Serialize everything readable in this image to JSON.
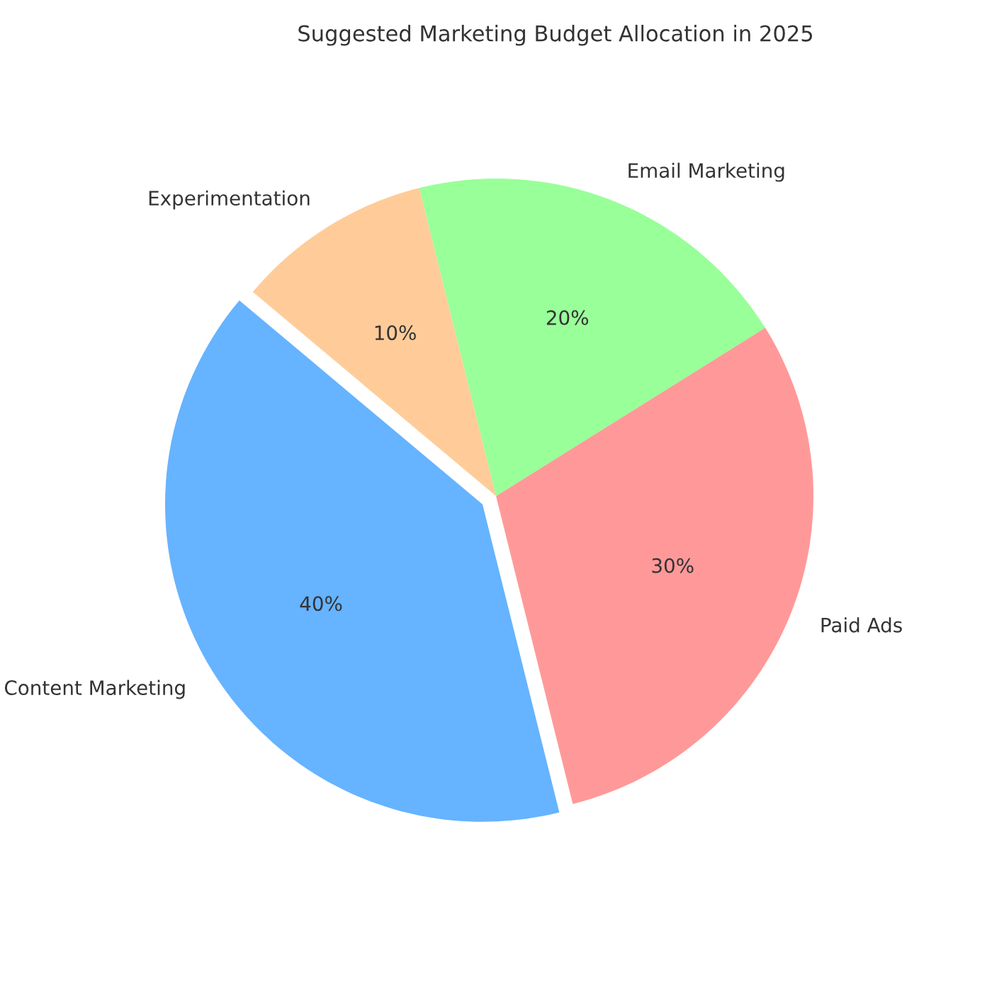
{
  "chart_data": {
    "type": "pie",
    "title": "Suggested Marketing Budget Allocation in 2025",
    "categories": [
      "Content Marketing",
      "Paid Ads",
      "Email Marketing",
      "Experimentation"
    ],
    "values": [
      40,
      30,
      20,
      10
    ],
    "colors": [
      "#66b3ff",
      "#ff9999",
      "#99ff99",
      "#ffcc99"
    ],
    "value_labels": [
      "40%",
      "30%",
      "20%",
      "10%"
    ],
    "legend": false
  }
}
